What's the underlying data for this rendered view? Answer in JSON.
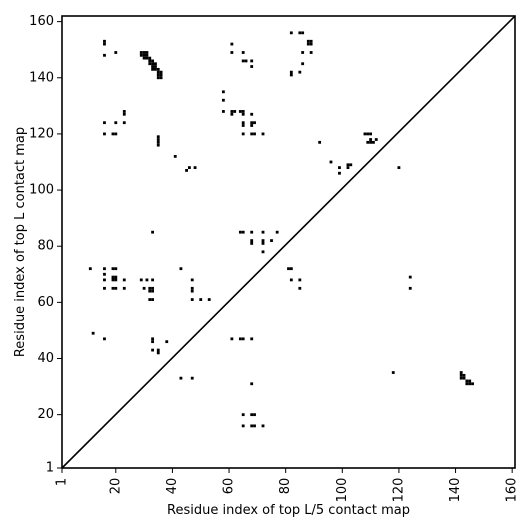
{
  "chart_data": {
    "type": "heatmap",
    "title": "",
    "xlabel": "Residue index of top L/5 contact map",
    "ylabel": "Residue index of top L contact map",
    "xlim": [
      1,
      161
    ],
    "ylim": [
      1,
      162
    ],
    "x_ticks": [
      1,
      20,
      40,
      60,
      80,
      100,
      120,
      140,
      160
    ],
    "y_ticks": [
      1,
      20,
      40,
      60,
      80,
      100,
      120,
      140,
      160
    ],
    "x_tick_rotation": -90,
    "grid": false,
    "legend": "none",
    "mark_color": "#000000",
    "diagonal": {
      "from": [
        1,
        1
      ],
      "to": [
        161,
        162
      ]
    },
    "cells": [
      [
        16,
        153
      ],
      [
        16,
        152
      ],
      [
        16,
        148
      ],
      [
        20,
        149
      ],
      [
        29,
        149
      ],
      [
        30,
        149
      ],
      [
        31,
        149
      ],
      [
        29,
        148
      ],
      [
        30,
        148
      ],
      [
        31,
        148
      ],
      [
        30,
        147
      ],
      [
        31,
        147
      ],
      [
        32,
        147
      ],
      [
        32,
        146
      ],
      [
        33,
        146
      ],
      [
        32,
        145
      ],
      [
        33,
        145
      ],
      [
        34,
        145
      ],
      [
        33,
        144
      ],
      [
        34,
        144
      ],
      [
        33,
        143
      ],
      [
        34,
        143
      ],
      [
        35,
        143
      ],
      [
        35,
        142
      ],
      [
        36,
        142
      ],
      [
        35,
        141
      ],
      [
        36,
        141
      ],
      [
        35,
        140
      ],
      [
        36,
        140
      ],
      [
        61,
        152
      ],
      [
        61,
        149
      ],
      [
        65,
        149
      ],
      [
        65,
        146
      ],
      [
        66,
        146
      ],
      [
        68,
        146
      ],
      [
        68,
        144
      ],
      [
        82,
        156
      ],
      [
        85,
        156
      ],
      [
        86,
        156
      ],
      [
        88,
        153
      ],
      [
        89,
        153
      ],
      [
        88,
        152
      ],
      [
        89,
        152
      ],
      [
        86,
        149
      ],
      [
        89,
        149
      ],
      [
        86,
        145
      ],
      [
        82,
        142
      ],
      [
        82,
        141
      ],
      [
        85,
        142
      ],
      [
        58,
        135
      ],
      [
        58,
        132
      ],
      [
        58,
        128
      ],
      [
        61,
        128
      ],
      [
        62,
        128
      ],
      [
        64,
        128
      ],
      [
        65,
        128
      ],
      [
        61,
        127
      ],
      [
        65,
        127
      ],
      [
        68,
        127
      ],
      [
        65,
        124
      ],
      [
        65,
        123
      ],
      [
        68,
        124
      ],
      [
        69,
        124
      ],
      [
        68,
        123
      ],
      [
        65,
        120
      ],
      [
        68,
        120
      ],
      [
        69,
        120
      ],
      [
        72,
        120
      ],
      [
        16,
        124
      ],
      [
        20,
        124
      ],
      [
        23,
        124
      ],
      [
        23,
        127
      ],
      [
        23,
        128
      ],
      [
        16,
        120
      ],
      [
        19,
        120
      ],
      [
        20,
        120
      ],
      [
        35,
        119
      ],
      [
        35,
        118
      ],
      [
        35,
        117
      ],
      [
        35,
        116
      ],
      [
        41,
        112
      ],
      [
        45,
        107
      ],
      [
        46,
        108
      ],
      [
        48,
        108
      ],
      [
        92,
        117
      ],
      [
        96,
        110
      ],
      [
        99,
        108
      ],
      [
        99,
        106
      ],
      [
        102,
        108
      ],
      [
        102,
        109
      ],
      [
        103,
        109
      ],
      [
        108,
        120
      ],
      [
        109,
        120
      ],
      [
        110,
        120
      ],
      [
        110,
        118
      ],
      [
        109,
        117
      ],
      [
        110,
        117
      ],
      [
        111,
        117
      ],
      [
        112,
        118
      ],
      [
        120,
        108
      ],
      [
        33,
        85
      ],
      [
        64,
        85
      ],
      [
        65,
        85
      ],
      [
        68,
        85
      ],
      [
        72,
        85
      ],
      [
        77,
        85
      ],
      [
        68,
        82
      ],
      [
        68,
        81
      ],
      [
        72,
        82
      ],
      [
        72,
        81
      ],
      [
        75,
        82
      ],
      [
        72,
        78
      ],
      [
        11,
        72
      ],
      [
        16,
        72
      ],
      [
        19,
        72
      ],
      [
        20,
        72
      ],
      [
        16,
        70
      ],
      [
        19,
        69
      ],
      [
        20,
        69
      ],
      [
        16,
        68
      ],
      [
        19,
        68
      ],
      [
        20,
        68
      ],
      [
        23,
        68
      ],
      [
        16,
        65
      ],
      [
        19,
        65
      ],
      [
        20,
        65
      ],
      [
        23,
        65
      ],
      [
        43,
        72
      ],
      [
        29,
        68
      ],
      [
        31,
        68
      ],
      [
        33,
        68
      ],
      [
        47,
        68
      ],
      [
        30,
        65
      ],
      [
        32,
        65
      ],
      [
        33,
        65
      ],
      [
        47,
        65
      ],
      [
        32,
        64
      ],
      [
        33,
        64
      ],
      [
        47,
        64
      ],
      [
        32,
        61
      ],
      [
        33,
        61
      ],
      [
        47,
        61
      ],
      [
        50,
        61
      ],
      [
        53,
        61
      ],
      [
        81,
        72
      ],
      [
        82,
        72
      ],
      [
        82,
        68
      ],
      [
        85,
        68
      ],
      [
        85,
        65
      ],
      [
        124,
        69
      ],
      [
        124,
        65
      ],
      [
        12,
        49
      ],
      [
        16,
        47
      ],
      [
        33,
        47
      ],
      [
        33,
        46
      ],
      [
        38,
        46
      ],
      [
        35,
        43
      ],
      [
        35,
        42
      ],
      [
        33,
        43
      ],
      [
        61,
        47
      ],
      [
        64,
        47
      ],
      [
        65,
        47
      ],
      [
        68,
        47
      ],
      [
        43,
        33
      ],
      [
        47,
        33
      ],
      [
        68,
        31
      ],
      [
        118,
        35
      ],
      [
        142,
        35
      ],
      [
        142,
        34
      ],
      [
        143,
        34
      ],
      [
        142,
        33
      ],
      [
        143,
        33
      ],
      [
        144,
        32
      ],
      [
        145,
        32
      ],
      [
        144,
        31
      ],
      [
        145,
        31
      ],
      [
        146,
        31
      ],
      [
        65,
        20
      ],
      [
        68,
        20
      ],
      [
        69,
        20
      ],
      [
        65,
        16
      ],
      [
        68,
        16
      ],
      [
        69,
        16
      ],
      [
        72,
        16
      ]
    ]
  }
}
